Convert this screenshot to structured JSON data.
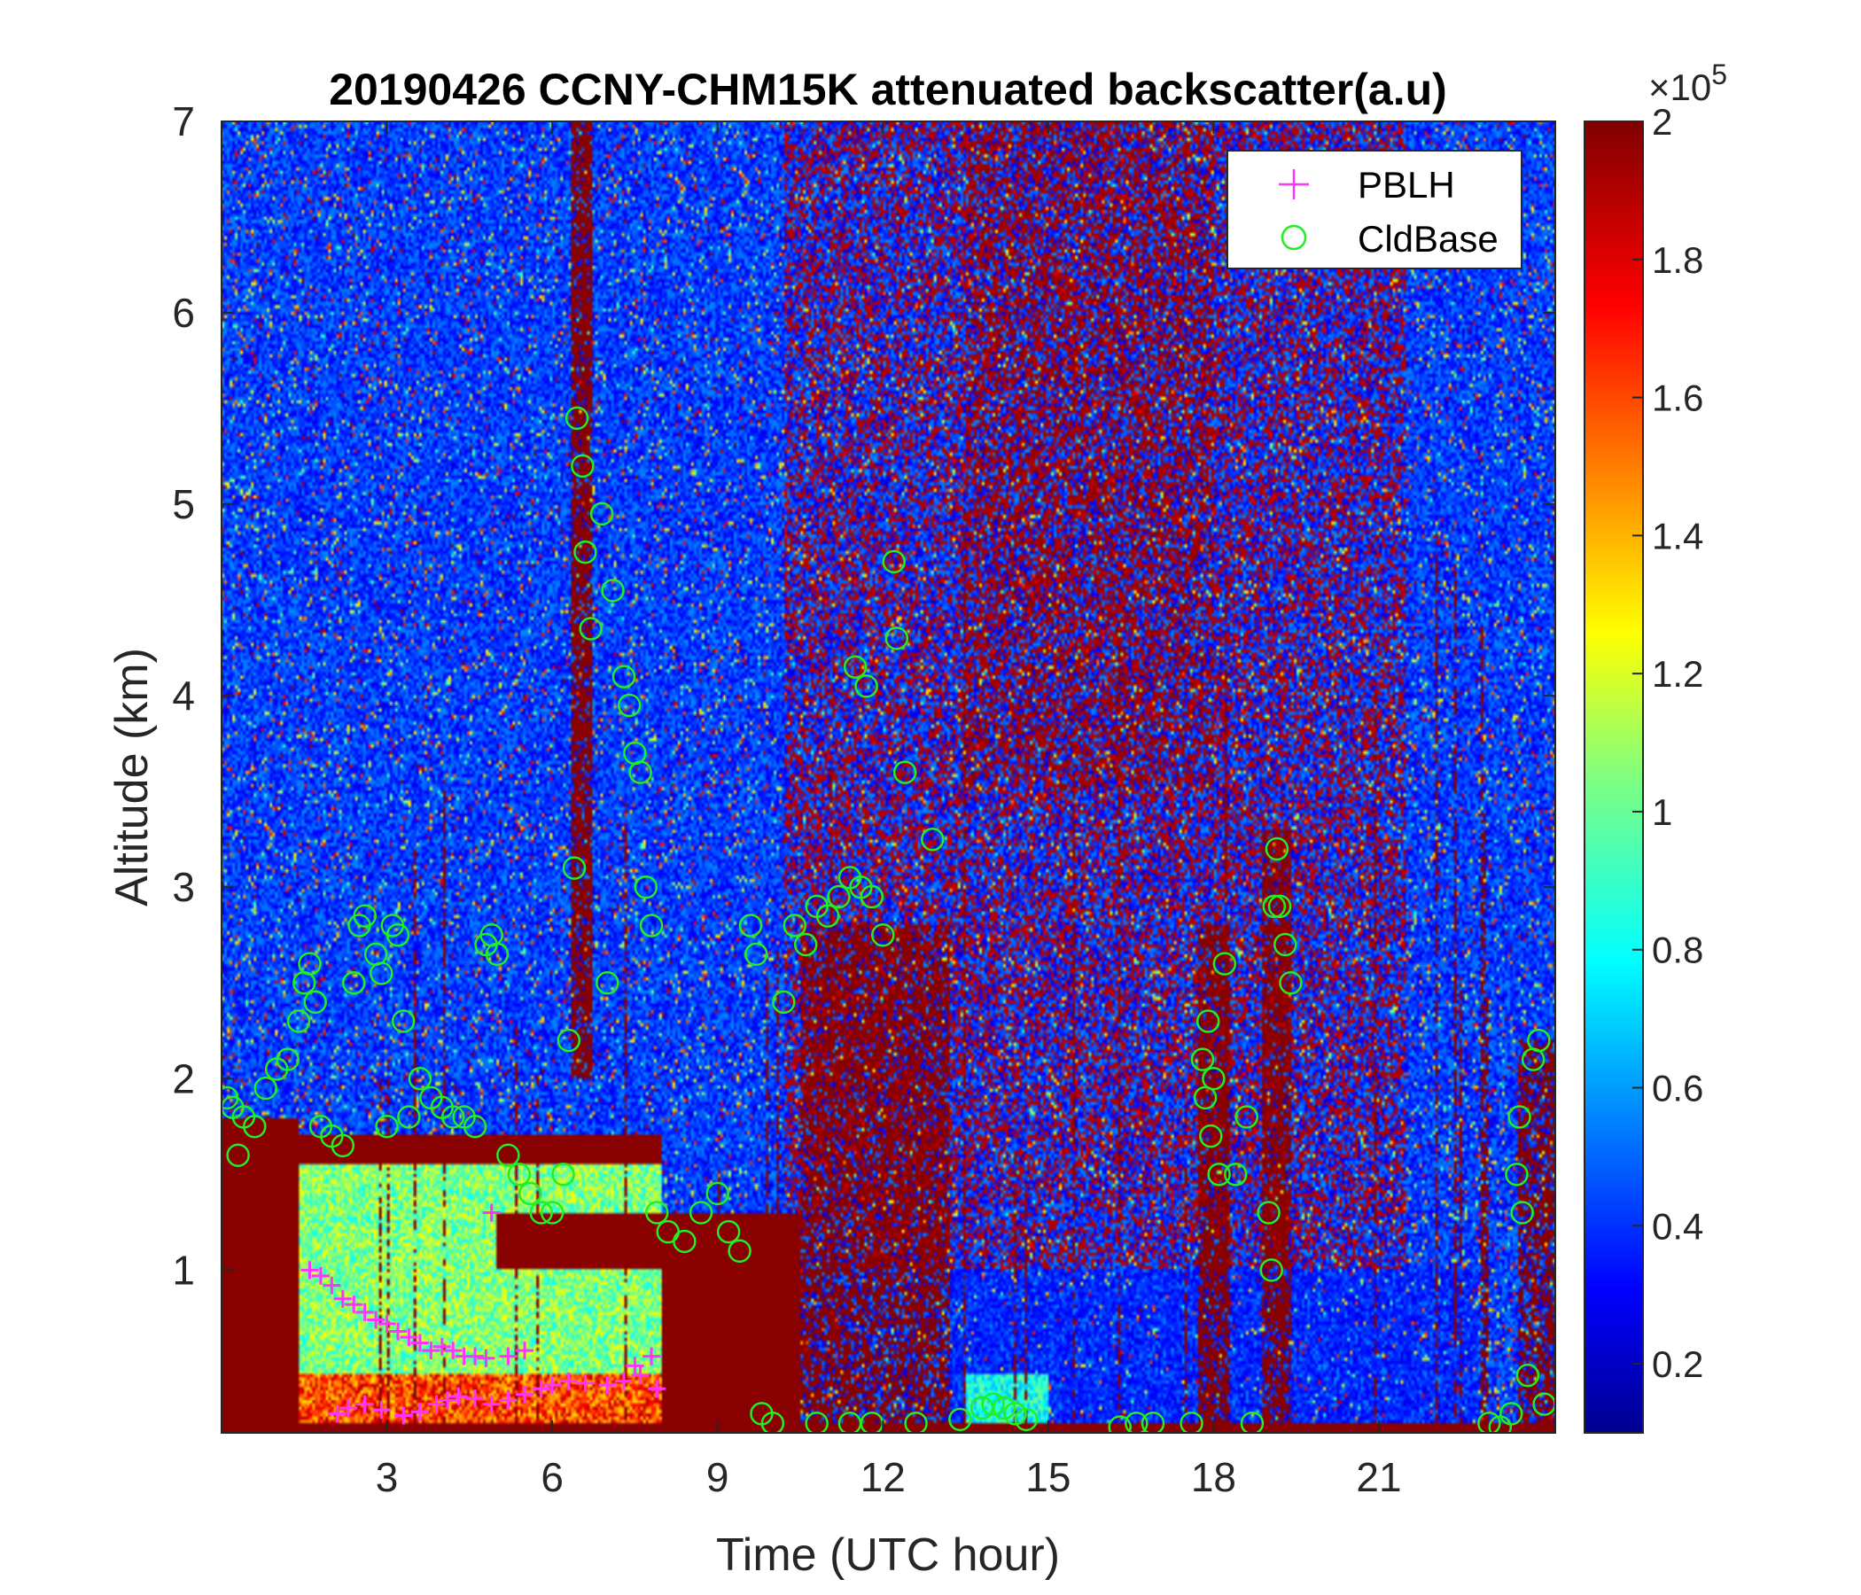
{
  "chart_data": {
    "type": "heatmap",
    "title": "20190426 CCNY-CHM15K attenuated backscatter(a.u)",
    "xlabel": "Time (UTC hour)",
    "ylabel": "Altitude (km)",
    "xlim": [
      0,
      24.2
    ],
    "ylim": [
      0.15,
      7
    ],
    "xticks": [
      "3",
      "6",
      "9",
      "12",
      "15",
      "18",
      "21"
    ],
    "yticks": [
      "1",
      "2",
      "3",
      "4",
      "5",
      "6",
      "7"
    ],
    "colorbar": {
      "colormap": "jet",
      "range": [
        0.1,
        2.0
      ],
      "multiplier_text": "×10",
      "multiplier_exp": "5",
      "ticks": [
        "0.2",
        "0.4",
        "0.6",
        "0.8",
        "1",
        "1.2",
        "1.4",
        "1.6",
        "1.8",
        "2"
      ]
    },
    "legend": {
      "placement": "top-right",
      "entries": [
        {
          "label": "PBLH",
          "marker": "+",
          "color": "#ff33ff"
        },
        {
          "label": "CldBase",
          "marker": "o",
          "color": "#22ee22"
        }
      ]
    },
    "series": [
      {
        "name": "PBLH",
        "marker": "+",
        "color": "#ff33ff",
        "points": [
          [
            1.6,
            1.0
          ],
          [
            1.8,
            0.97
          ],
          [
            2.0,
            0.92
          ],
          [
            2.2,
            0.85
          ],
          [
            2.4,
            0.82
          ],
          [
            2.6,
            0.78
          ],
          [
            2.8,
            0.74
          ],
          [
            3.0,
            0.72
          ],
          [
            3.2,
            0.68
          ],
          [
            3.4,
            0.65
          ],
          [
            3.6,
            0.62
          ],
          [
            3.8,
            0.58
          ],
          [
            4.0,
            0.6
          ],
          [
            4.2,
            0.58
          ],
          [
            4.4,
            0.55
          ],
          [
            4.6,
            0.55
          ],
          [
            4.8,
            0.54
          ],
          [
            5.2,
            0.55
          ],
          [
            5.5,
            0.58
          ],
          [
            2.1,
            0.25
          ],
          [
            2.3,
            0.28
          ],
          [
            2.6,
            0.3
          ],
          [
            2.9,
            0.27
          ],
          [
            3.3,
            0.24
          ],
          [
            3.6,
            0.26
          ],
          [
            3.9,
            0.3
          ],
          [
            4.1,
            0.32
          ],
          [
            4.3,
            0.34
          ],
          [
            4.6,
            0.33
          ],
          [
            4.9,
            0.3
          ],
          [
            5.2,
            0.32
          ],
          [
            5.5,
            0.35
          ],
          [
            5.8,
            0.38
          ],
          [
            6.0,
            0.4
          ],
          [
            6.3,
            0.42
          ],
          [
            6.6,
            0.41
          ],
          [
            7.0,
            0.4
          ],
          [
            7.3,
            0.42
          ],
          [
            7.6,
            0.45
          ],
          [
            7.9,
            0.38
          ],
          [
            7.8,
            0.55
          ],
          [
            7.5,
            0.5
          ],
          [
            4.9,
            1.3
          ]
        ]
      },
      {
        "name": "CldBase",
        "marker": "o",
        "color": "#22ee22",
        "points": [
          [
            0.1,
            1.9
          ],
          [
            0.2,
            1.85
          ],
          [
            0.3,
            1.6
          ],
          [
            0.4,
            1.8
          ],
          [
            0.6,
            1.75
          ],
          [
            0.8,
            1.95
          ],
          [
            1.0,
            2.05
          ],
          [
            1.2,
            2.1
          ],
          [
            1.4,
            2.3
          ],
          [
            1.5,
            2.5
          ],
          [
            1.6,
            2.6
          ],
          [
            1.7,
            2.4
          ],
          [
            1.8,
            1.75
          ],
          [
            2.0,
            1.7
          ],
          [
            2.2,
            1.65
          ],
          [
            2.4,
            2.5
          ],
          [
            2.5,
            2.8
          ],
          [
            2.6,
            2.85
          ],
          [
            2.8,
            2.65
          ],
          [
            2.9,
            2.55
          ],
          [
            3.0,
            1.75
          ],
          [
            3.1,
            2.8
          ],
          [
            3.2,
            2.75
          ],
          [
            3.3,
            2.3
          ],
          [
            3.4,
            1.8
          ],
          [
            3.6,
            2.0
          ],
          [
            3.8,
            1.9
          ],
          [
            4.0,
            1.85
          ],
          [
            4.2,
            1.8
          ],
          [
            4.4,
            1.8
          ],
          [
            4.6,
            1.75
          ],
          [
            4.8,
            2.7
          ],
          [
            4.9,
            2.75
          ],
          [
            5.0,
            2.65
          ],
          [
            5.2,
            1.6
          ],
          [
            5.4,
            1.5
          ],
          [
            5.6,
            1.4
          ],
          [
            5.8,
            1.3
          ],
          [
            6.0,
            1.3
          ],
          [
            6.2,
            1.5
          ],
          [
            6.3,
            2.2
          ],
          [
            6.4,
            3.1
          ],
          [
            6.45,
            5.45
          ],
          [
            6.55,
            5.2
          ],
          [
            6.6,
            4.75
          ],
          [
            6.7,
            4.35
          ],
          [
            6.9,
            4.95
          ],
          [
            7.0,
            2.5
          ],
          [
            7.1,
            4.55
          ],
          [
            7.3,
            4.1
          ],
          [
            7.4,
            3.95
          ],
          [
            7.5,
            3.7
          ],
          [
            7.6,
            3.6
          ],
          [
            7.7,
            3.0
          ],
          [
            7.8,
            2.8
          ],
          [
            7.9,
            1.3
          ],
          [
            8.1,
            1.2
          ],
          [
            8.4,
            1.15
          ],
          [
            8.7,
            1.3
          ],
          [
            9.0,
            1.4
          ],
          [
            9.2,
            1.2
          ],
          [
            9.4,
            1.1
          ],
          [
            9.6,
            2.8
          ],
          [
            9.7,
            2.65
          ],
          [
            9.8,
            0.25
          ],
          [
            10.0,
            0.2
          ],
          [
            10.2,
            2.4
          ],
          [
            10.4,
            2.8
          ],
          [
            10.6,
            2.7
          ],
          [
            10.8,
            2.9
          ],
          [
            11.0,
            2.85
          ],
          [
            11.2,
            2.95
          ],
          [
            11.4,
            3.05
          ],
          [
            11.6,
            3.0
          ],
          [
            11.8,
            2.95
          ],
          [
            12.0,
            2.75
          ],
          [
            12.2,
            4.7
          ],
          [
            12.25,
            4.3
          ],
          [
            12.4,
            3.6
          ],
          [
            12.9,
            3.25
          ],
          [
            11.5,
            4.15
          ],
          [
            11.7,
            4.05
          ],
          [
            10.8,
            0.2
          ],
          [
            11.4,
            0.2
          ],
          [
            11.8,
            0.2
          ],
          [
            12.6,
            0.2
          ],
          [
            13.4,
            0.22
          ],
          [
            13.8,
            0.28
          ],
          [
            14.0,
            0.3
          ],
          [
            14.2,
            0.28
          ],
          [
            14.4,
            0.25
          ],
          [
            14.6,
            0.22
          ],
          [
            16.3,
            0.18
          ],
          [
            16.6,
            0.2
          ],
          [
            16.9,
            0.2
          ],
          [
            17.6,
            0.2
          ],
          [
            17.8,
            2.1
          ],
          [
            17.85,
            1.9
          ],
          [
            17.9,
            2.3
          ],
          [
            17.95,
            1.7
          ],
          [
            18.0,
            2.0
          ],
          [
            18.1,
            1.5
          ],
          [
            18.2,
            2.6
          ],
          [
            18.4,
            1.5
          ],
          [
            18.6,
            1.8
          ],
          [
            18.7,
            0.2
          ],
          [
            19.0,
            1.3
          ],
          [
            19.05,
            1.0
          ],
          [
            19.1,
            2.9
          ],
          [
            19.15,
            3.2
          ],
          [
            19.2,
            2.9
          ],
          [
            19.3,
            2.7
          ],
          [
            19.4,
            2.5
          ],
          [
            23.0,
            0.2
          ],
          [
            23.2,
            0.18
          ],
          [
            23.4,
            0.25
          ],
          [
            23.5,
            1.5
          ],
          [
            23.55,
            1.8
          ],
          [
            23.6,
            1.3
          ],
          [
            23.7,
            0.45
          ],
          [
            23.8,
            2.1
          ],
          [
            23.9,
            2.2
          ],
          [
            24.0,
            0.3
          ]
        ]
      }
    ]
  }
}
